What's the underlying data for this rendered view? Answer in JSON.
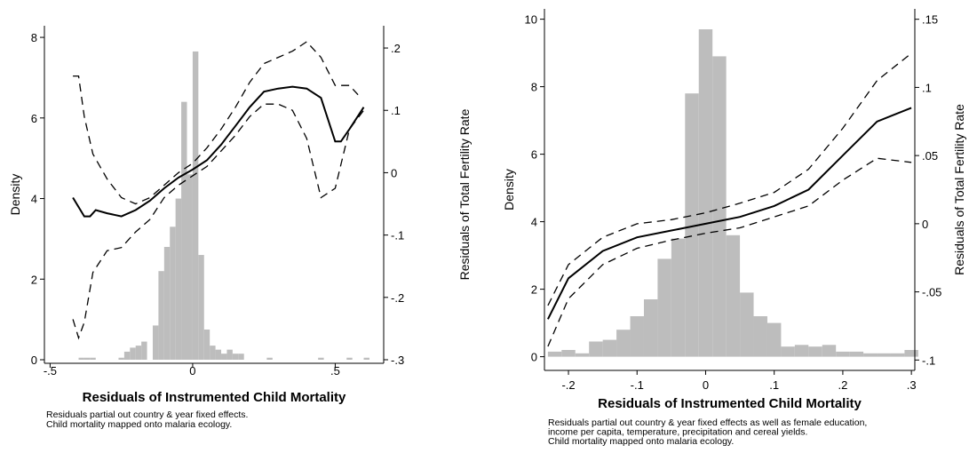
{
  "chart_data": [
    {
      "type": "bar",
      "xlabel": "Residuals of Instrumented Child Mortality",
      "ylabel": "Density",
      "y2label": "Residuals of Total Fertility Rate",
      "xlim": [
        -0.52,
        0.67
      ],
      "ylim": [
        0,
        8.2
      ],
      "y2lim": [
        -0.3,
        0.23
      ],
      "xticks": [
        {
          "v": -0.5,
          "label": "-.5"
        },
        {
          "v": 0,
          "label": "0"
        },
        {
          "v": 0.5,
          "label": ".5"
        }
      ],
      "yticks": [
        {
          "v": 0,
          "label": "0"
        },
        {
          "v": 2,
          "label": "2"
        },
        {
          "v": 4,
          "label": "4"
        },
        {
          "v": 6,
          "label": "6"
        },
        {
          "v": 8,
          "label": "8"
        }
      ],
      "y2ticks": [
        {
          "v": 0.2,
          "label": ".2"
        },
        {
          "v": 0.1,
          "label": ".1"
        },
        {
          "v": 0,
          "label": "0"
        },
        {
          "v": -0.1,
          "label": "-.1"
        },
        {
          "v": -0.2,
          "label": "-.2"
        },
        {
          "v": -0.3,
          "label": "-.3"
        }
      ],
      "histogram": {
        "bin_width": 0.02,
        "bins": [
          {
            "x0": -0.4,
            "density": 0.05
          },
          {
            "x0": -0.38,
            "density": 0.05
          },
          {
            "x0": -0.36,
            "density": 0.05
          },
          {
            "x0": -0.26,
            "density": 0.05
          },
          {
            "x0": -0.24,
            "density": 0.2
          },
          {
            "x0": -0.22,
            "density": 0.3
          },
          {
            "x0": -0.2,
            "density": 0.35
          },
          {
            "x0": -0.18,
            "density": 0.45
          },
          {
            "x0": -0.14,
            "density": 0.85
          },
          {
            "x0": -0.12,
            "density": 2.2
          },
          {
            "x0": -0.1,
            "density": 2.8
          },
          {
            "x0": -0.08,
            "density": 3.3
          },
          {
            "x0": -0.06,
            "density": 4.0
          },
          {
            "x0": -0.04,
            "density": 6.4
          },
          {
            "x0": -0.02,
            "density": 4.6
          },
          {
            "x0": 0,
            "density": 7.65
          },
          {
            "x0": 0.02,
            "density": 2.6
          },
          {
            "x0": 0.04,
            "density": 0.75
          },
          {
            "x0": 0.06,
            "density": 0.35
          },
          {
            "x0": 0.08,
            "density": 0.25
          },
          {
            "x0": 0.1,
            "density": 0.15
          },
          {
            "x0": 0.12,
            "density": 0.25
          },
          {
            "x0": 0.14,
            "density": 0.15
          },
          {
            "x0": 0.16,
            "density": 0.15
          },
          {
            "x0": 0.26,
            "density": 0.05
          },
          {
            "x0": 0.44,
            "density": 0.05
          },
          {
            "x0": 0.54,
            "density": 0.05
          },
          {
            "x0": 0.6,
            "density": 0.05
          }
        ]
      },
      "series": [
        {
          "line": "solid",
          "x": [
            -0.42,
            -0.38,
            -0.36,
            -0.34,
            -0.3,
            -0.25,
            -0.2,
            -0.15,
            -0.1,
            -0.05,
            0,
            0.05,
            0.1,
            0.15,
            0.2,
            0.25,
            0.3,
            0.35,
            0.4,
            0.45,
            0.5,
            0.52,
            0.55,
            0.6
          ],
          "y": [
            -0.04,
            -0.07,
            -0.07,
            -0.06,
            -0.065,
            -0.07,
            -0.06,
            -0.045,
            -0.025,
            -0.008,
            0.005,
            0.02,
            0.045,
            0.075,
            0.105,
            0.13,
            0.135,
            0.138,
            0.135,
            0.12,
            0.05,
            0.05,
            0.07,
            0.105
          ]
        },
        {
          "line": "dashed",
          "x": [
            -0.42,
            -0.4,
            -0.38,
            -0.35,
            -0.3,
            -0.25,
            -0.2,
            -0.15,
            -0.1,
            -0.05,
            0,
            0.05,
            0.1,
            0.15,
            0.2,
            0.25,
            0.3,
            0.35,
            0.4,
            0.45,
            0.5,
            0.55,
            0.58
          ],
          "y": [
            0.155,
            0.155,
            0.09,
            0.03,
            -0.01,
            -0.04,
            -0.05,
            -0.04,
            -0.02,
            0.0,
            0.015,
            0.04,
            0.07,
            0.105,
            0.145,
            0.175,
            0.185,
            0.195,
            0.21,
            0.185,
            0.14,
            0.14,
            0.125
          ]
        },
        {
          "line": "dashed",
          "x": [
            -0.42,
            -0.4,
            -0.38,
            -0.35,
            -0.3,
            -0.25,
            -0.2,
            -0.15,
            -0.1,
            -0.05,
            0,
            0.05,
            0.1,
            0.15,
            0.2,
            0.25,
            0.3,
            0.35,
            0.4,
            0.45,
            0.5,
            0.55,
            0.6
          ],
          "y": [
            -0.235,
            -0.265,
            -0.24,
            -0.16,
            -0.125,
            -0.12,
            -0.095,
            -0.075,
            -0.04,
            -0.02,
            -0.005,
            0.01,
            0.035,
            0.06,
            0.09,
            0.11,
            0.11,
            0.1,
            0.055,
            -0.04,
            -0.025,
            0.07,
            0.1
          ]
        }
      ],
      "notes": [
        "Residuals partial out country & year fixed effects.",
        "Child mortality mapped onto malaria ecology."
      ]
    },
    {
      "type": "bar",
      "xlabel": "Residuals of Instrumented Child Mortality",
      "ylabel": "Density",
      "y2label": "Residuals of Total Fertility Rate",
      "xlim": [
        -0.235,
        0.305
      ],
      "ylim": [
        -0.3,
        10.2
      ],
      "y2lim": [
        -0.105,
        0.155
      ],
      "xticks": [
        {
          "v": -0.2,
          "label": "-.2"
        },
        {
          "v": -0.1,
          "label": "-.1"
        },
        {
          "v": 0,
          "label": "0"
        },
        {
          "v": 0.1,
          "label": ".1"
        },
        {
          "v": 0.2,
          "label": ".2"
        },
        {
          "v": 0.3,
          "label": ".3"
        }
      ],
      "yticks": [
        {
          "v": 0,
          "label": "0"
        },
        {
          "v": 2,
          "label": "2"
        },
        {
          "v": 4,
          "label": "4"
        },
        {
          "v": 6,
          "label": "6"
        },
        {
          "v": 8,
          "label": "8"
        },
        {
          "v": 10,
          "label": "10"
        }
      ],
      "y2ticks": [
        {
          "v": 0.15,
          "label": ".15"
        },
        {
          "v": 0.1,
          "label": ".1"
        },
        {
          "v": 0.05,
          "label": ".05"
        },
        {
          "v": 0,
          "label": "0"
        },
        {
          "v": -0.05,
          "label": "-.05"
        },
        {
          "v": -0.1,
          "label": "-.1"
        }
      ],
      "histogram": {
        "bin_width": 0.02,
        "bins": [
          {
            "x0": -0.23,
            "density": 0.15
          },
          {
            "x0": -0.21,
            "density": 0.2
          },
          {
            "x0": -0.19,
            "density": 0.1
          },
          {
            "x0": -0.17,
            "density": 0.45
          },
          {
            "x0": -0.15,
            "density": 0.5
          },
          {
            "x0": -0.13,
            "density": 0.8
          },
          {
            "x0": -0.11,
            "density": 1.2
          },
          {
            "x0": -0.09,
            "density": 1.7
          },
          {
            "x0": -0.07,
            "density": 2.9
          },
          {
            "x0": -0.05,
            "density": 3.5
          },
          {
            "x0": -0.03,
            "density": 7.8
          },
          {
            "x0": -0.01,
            "density": 9.7
          },
          {
            "x0": 0.01,
            "density": 8.9
          },
          {
            "x0": 0.03,
            "density": 3.6
          },
          {
            "x0": 0.05,
            "density": 1.9
          },
          {
            "x0": 0.07,
            "density": 1.2
          },
          {
            "x0": 0.09,
            "density": 1.0
          },
          {
            "x0": 0.11,
            "density": 0.3
          },
          {
            "x0": 0.13,
            "density": 0.35
          },
          {
            "x0": 0.15,
            "density": 0.3
          },
          {
            "x0": 0.17,
            "density": 0.35
          },
          {
            "x0": 0.19,
            "density": 0.15
          },
          {
            "x0": 0.21,
            "density": 0.15
          },
          {
            "x0": 0.23,
            "density": 0.1
          },
          {
            "x0": 0.25,
            "density": 0.1
          },
          {
            "x0": 0.27,
            "density": 0.1
          },
          {
            "x0": 0.29,
            "density": 0.2
          }
        ]
      },
      "series": [
        {
          "line": "solid",
          "x": [
            -0.23,
            -0.2,
            -0.15,
            -0.1,
            -0.05,
            0,
            0.05,
            0.1,
            0.15,
            0.2,
            0.25,
            0.3
          ],
          "y": [
            -0.07,
            -0.04,
            -0.02,
            -0.01,
            -0.005,
            0,
            0.005,
            0.013,
            0.025,
            0.05,
            0.075,
            0.085
          ]
        },
        {
          "line": "dashed",
          "x": [
            -0.23,
            -0.2,
            -0.15,
            -0.1,
            -0.05,
            0,
            0.05,
            0.1,
            0.15,
            0.2,
            0.25,
            0.3
          ],
          "y": [
            -0.06,
            -0.03,
            -0.01,
            0.0,
            0.003,
            0.008,
            0.015,
            0.023,
            0.04,
            0.07,
            0.105,
            0.125
          ]
        },
        {
          "line": "dashed",
          "x": [
            -0.23,
            -0.2,
            -0.15,
            -0.1,
            -0.05,
            0,
            0.05,
            0.1,
            0.15,
            0.2,
            0.25,
            0.3
          ],
          "y": [
            -0.09,
            -0.055,
            -0.03,
            -0.018,
            -0.012,
            -0.007,
            -0.003,
            0.005,
            0.013,
            0.032,
            0.048,
            0.045
          ]
        }
      ],
      "notes": [
        "Residuals partial out country & year fixed effects as well as female education,",
        "income per capita, temperature, precipitation and cereal yields.",
        "Child mortality mapped onto malaria ecology."
      ]
    }
  ],
  "colors": {
    "histogram": "#bdbdbd",
    "line": "#000000",
    "axis": "#000000",
    "background": "#ffffff"
  }
}
